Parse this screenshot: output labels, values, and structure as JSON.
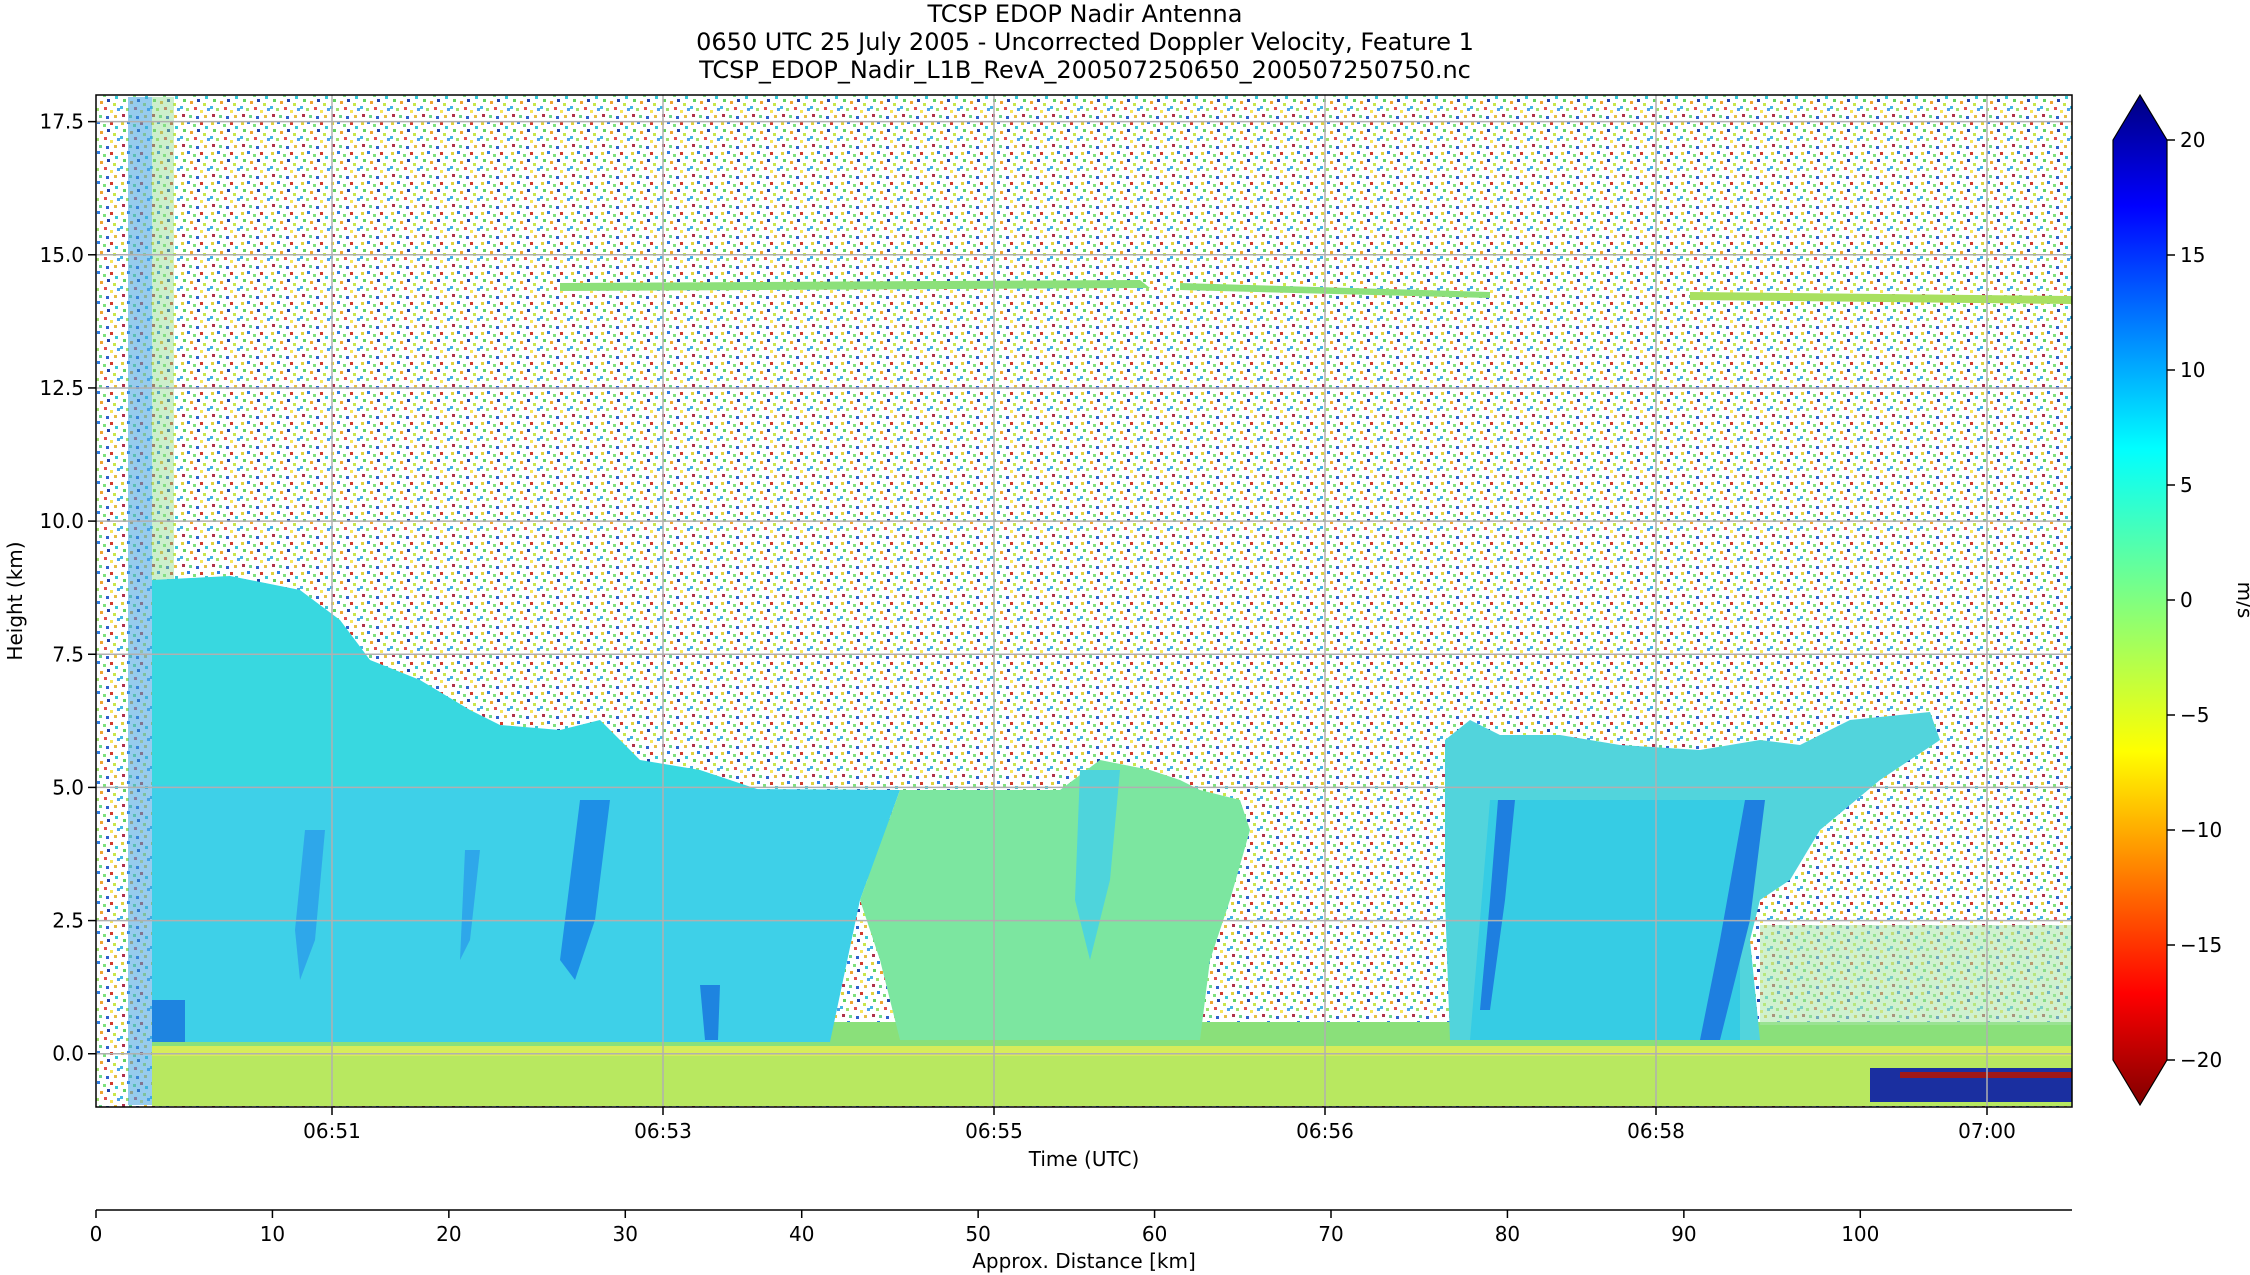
{
  "title_lines": [
    "TCSP EDOP Nadir Antenna",
    "0650 UTC 25 July 2005 - Uncorrected Doppler Velocity, Feature 1",
    "TCSP_EDOP_Nadir_L1B_RevA_200507250650_200507250750.nc"
  ],
  "chart_data": {
    "type": "heatmap",
    "title": "TCSP EDOP Nadir Antenna",
    "subtitle": "0650 UTC 25 July 2005 - Uncorrected Doppler Velocity, Feature 1",
    "filename": "TCSP_EDOP_Nadir_L1B_RevA_200507250650_200507250750.nc",
    "xlabel": "Time (UTC)",
    "ylabel": "Height (km)",
    "x_ticks": [
      "06:51",
      "06:53",
      "06:55",
      "06:56",
      "06:58",
      "07:00"
    ],
    "ylim": [
      -1.0,
      18.0
    ],
    "y_ticks": [
      "0.0",
      "2.5",
      "5.0",
      "7.5",
      "10.0",
      "12.5",
      "15.0",
      "17.5"
    ],
    "y_tick_values": [
      0.0,
      2.5,
      5.0,
      7.5,
      10.0,
      12.5,
      15.0,
      17.5
    ],
    "grid": true,
    "colorbar": {
      "label": "m/s",
      "range": [
        -20,
        20
      ],
      "ticks": [
        "20",
        "15",
        "10",
        "5",
        "0",
        "−5",
        "−10",
        "−15",
        "−20"
      ],
      "tick_values": [
        20,
        15,
        10,
        5,
        0,
        -5,
        -10,
        -15,
        -20
      ],
      "colormap": "jet_r",
      "extend": "both",
      "colors": [
        "#800000",
        "#ff0000",
        "#ff8000",
        "#ffff00",
        "#80ff80",
        "#00ffff",
        "#0080ff",
        "#0000ff",
        "#000080"
      ]
    },
    "secondary_axis": {
      "label": "Approx. Distance [km]",
      "ticks": [
        "0",
        "10",
        "20",
        "30",
        "40",
        "50",
        "60",
        "70",
        "80",
        "90",
        "100"
      ],
      "tick_values": [
        0,
        10,
        20,
        30,
        40,
        50,
        60,
        70,
        80,
        90,
        100
      ],
      "range": [
        0,
        112
      ]
    }
  }
}
